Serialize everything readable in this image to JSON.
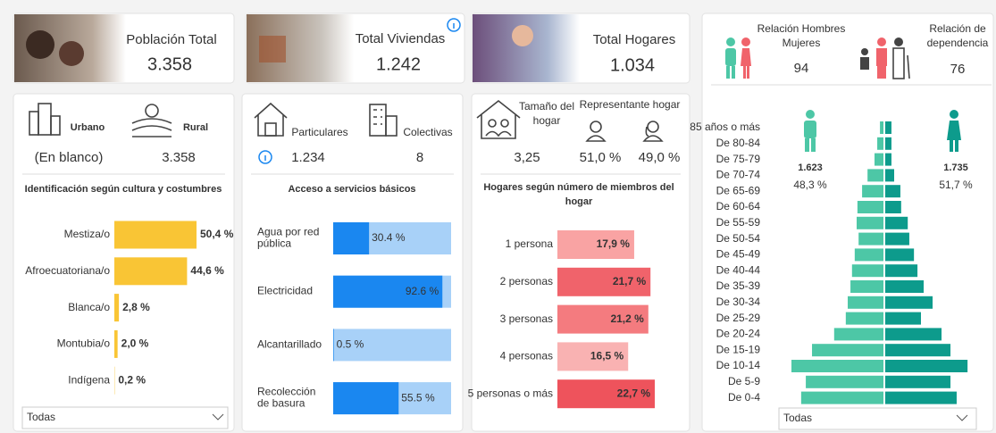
{
  "kpis": [
    {
      "title": "Población Total",
      "value": "3.358"
    },
    {
      "title": "Total Viviendas",
      "value": "1.242"
    },
    {
      "title": "Total Hogares",
      "value": "1.034"
    }
  ],
  "area": {
    "urban_label": "Urbano",
    "rural_label": "Rural",
    "urban_value": "(En blanco)",
    "rural_value": "3.358"
  },
  "housing": {
    "private_label": "Particulares",
    "collective_label": "Colectivas",
    "private_value": "1.234",
    "collective_value": "8"
  },
  "household": {
    "size_label": "Tamaño del hogar",
    "head_label": "Representante hogar",
    "size_value": "3,25",
    "head_male": "51,0 %",
    "head_female": "49,0 %"
  },
  "ratios": {
    "sex_label": "Relación Hombres Mujeres",
    "sex_value": "94",
    "dependency_label": "Relación de dependencia",
    "dependency_value": "76"
  },
  "population": {
    "male_total": "1.623",
    "male_share": "48,3 %",
    "female_total": "1.735",
    "female_share": "51,7 %"
  },
  "filters": [
    "Todas",
    "Todas"
  ],
  "chart_data": [
    {
      "type": "bar",
      "title": "Identificación según cultura y costumbres",
      "categories": [
        "Mestiza/o",
        "Afroecuatoriana/o",
        "Blanca/o",
        "Montubia/o",
        "Indígena"
      ],
      "values": [
        50.4,
        44.6,
        2.8,
        2.0,
        0.2
      ],
      "value_labels": [
        "50,4 %",
        "44,6 %",
        "2,8 %",
        "2,0 %",
        "0,2 %"
      ],
      "color": "#f9c535"
    },
    {
      "type": "bar",
      "title": "Acceso a servicios básicos",
      "categories": [
        "Agua por red pública",
        "Electricidad",
        "Alcantarillado",
        "Recolección de basura"
      ],
      "values": [
        30.4,
        92.6,
        0.5,
        55.5
      ],
      "value_labels": [
        "30.4 %",
        "92.6 %",
        "0.5 %",
        "55.5 %"
      ],
      "color": "#1a87f0",
      "background": "#a8d1f8"
    },
    {
      "type": "bar",
      "title": "Hogares según número de miembros del hogar",
      "categories": [
        "1 persona",
        "2 personas",
        "3 personas",
        "4 personas",
        "5 personas o más"
      ],
      "values": [
        17.9,
        21.7,
        21.2,
        16.5,
        22.7
      ],
      "value_labels": [
        "17,9 %",
        "21,7 %",
        "21,2 %",
        "16,5 %",
        "22,7 %"
      ],
      "colors": [
        "#f9a3a3",
        "#f0636b",
        "#f47b7f",
        "#f9b2b2",
        "#ee535c"
      ]
    },
    {
      "type": "pyramid",
      "categories": [
        "85 años o más",
        "De 80-84",
        "De 75-79",
        "De 70-74",
        "De 65-69",
        "De 60-64",
        "De 55-59",
        "De 50-54",
        "De 45-49",
        "De 40-44",
        "De 35-39",
        "De 30-34",
        "De 25-29",
        "De 20-24",
        "De 15-19",
        "De 10-14",
        "De 5-9",
        "De 0-4"
      ],
      "series": [
        {
          "color": "#4dc7a6",
          "values": [
            9,
            16,
            23,
            41,
            55,
            67,
            69,
            64,
            74,
            81,
            85,
            92,
            97,
            127,
            184,
            237,
            200,
            212
          ]
        },
        {
          "color": "#0d9b8c",
          "values": [
            16,
            16,
            16,
            23,
            39,
            41,
            58,
            62,
            74,
            83,
            99,
            122,
            92,
            145,
            168,
            212,
            168,
            184
          ]
        }
      ]
    }
  ]
}
